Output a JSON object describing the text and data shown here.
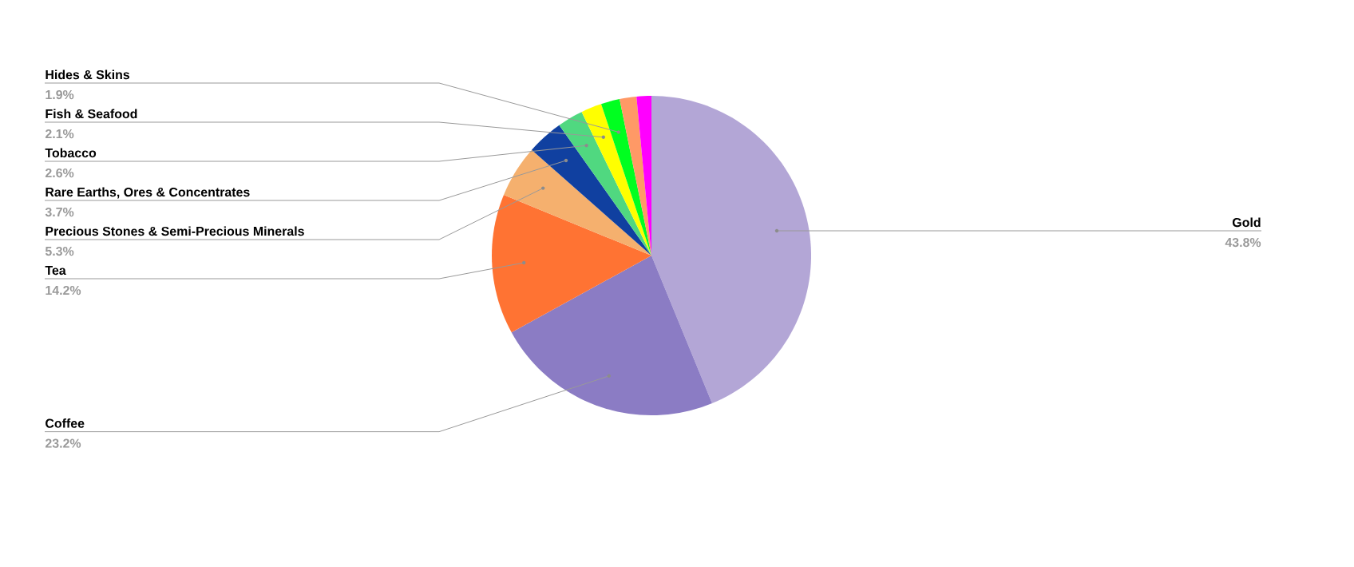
{
  "chart_data": {
    "type": "pie",
    "categories": [
      "Gold",
      "Coffee",
      "Tea",
      "Precious Stones & Semi-Precious Minerals",
      "Rare Earths, Ores & Concentrates",
      "Tobacco",
      "Fish & Seafood",
      "Hides & Skins",
      null,
      null
    ],
    "values": [
      43.8,
      23.2,
      14.2,
      5.3,
      3.7,
      2.6,
      2.1,
      1.9,
      1.7,
      1.5
    ],
    "value_labels": [
      "43.8%",
      "23.2%",
      "14.2%",
      "5.3%",
      "3.7%",
      "2.6%",
      "2.1%",
      "1.9%",
      null,
      null
    ],
    "colors": [
      "#b3a6d6",
      "#8b7cc4",
      "#ff7333",
      "#f5b06e",
      "#1040a0",
      "#50d880",
      "#ffff00",
      "#00ff20",
      "#ff9966",
      "#ff00ff"
    ]
  }
}
